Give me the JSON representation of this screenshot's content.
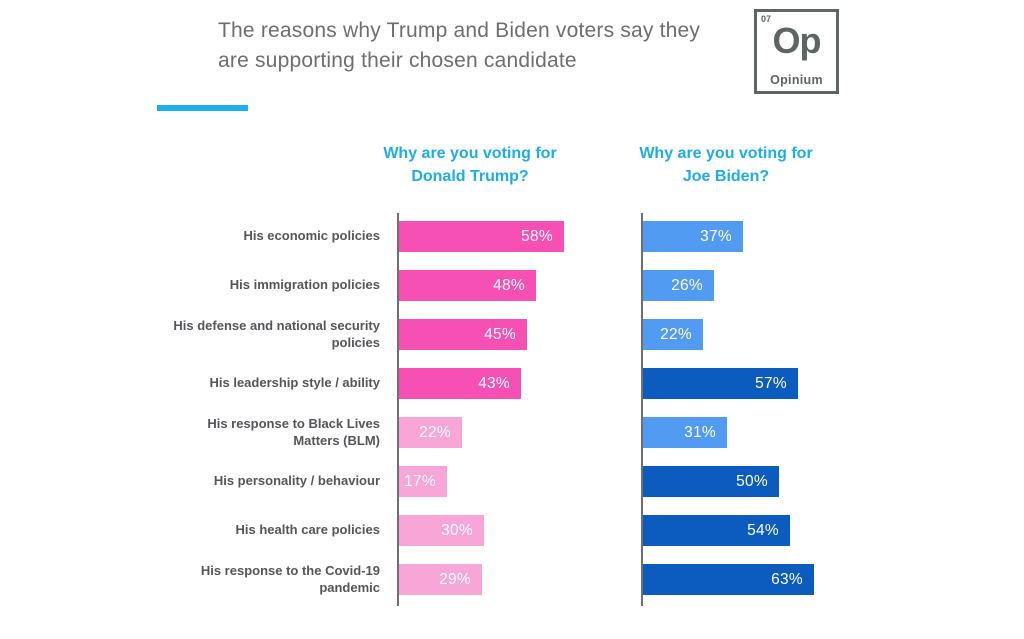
{
  "header": {
    "title": "The reasons why Trump and Biden voters say they are supporting their chosen candidate",
    "logo": {
      "number": "07",
      "symbol": "Op",
      "name": "Opinium"
    }
  },
  "chart_data": {
    "type": "bar",
    "orientation": "horizontal",
    "value_suffix": "%",
    "xlim": [
      0,
      100
    ],
    "grid": false,
    "value_labels": "inside-end",
    "categories": [
      "His economic policies",
      "His immigration policies",
      "His defense and national security policies",
      "His leadership style / ability",
      "His response to Black Lives Matters (BLM)",
      "His personality / behaviour",
      "His health care policies",
      "His response to the Covid-19 pandemic"
    ],
    "series": [
      {
        "name": "Why are you voting for Donald Trump?",
        "header_lines": [
          "Why are you voting for",
          "Donald Trump?"
        ],
        "values": [
          58,
          48,
          45,
          43,
          22,
          17,
          30,
          29
        ],
        "tones": [
          "strong",
          "strong",
          "strong",
          "strong",
          "light",
          "light",
          "light",
          "light"
        ]
      },
      {
        "name": "Why are you voting for Joe Biden?",
        "header_lines": [
          "Why are you voting for",
          "Joe Biden?"
        ],
        "values": [
          37,
          26,
          22,
          57,
          31,
          50,
          54,
          63
        ],
        "tones": [
          "light",
          "light",
          "light",
          "strong",
          "light",
          "strong",
          "strong",
          "strong"
        ]
      }
    ]
  },
  "colors": {
    "trump_strong": "#F650B4",
    "trump_light": "#F8A5D8",
    "biden_strong": "#0B5CBE",
    "biden_light": "#519BF3",
    "accent_cyan": "#1CAEEA",
    "title_gray": "#6D6E71",
    "label_gray": "#54565A",
    "axis_gray": "#6E6F71",
    "logo_gray": "#5D6661",
    "bar_label_white": "#FFFFFF"
  }
}
